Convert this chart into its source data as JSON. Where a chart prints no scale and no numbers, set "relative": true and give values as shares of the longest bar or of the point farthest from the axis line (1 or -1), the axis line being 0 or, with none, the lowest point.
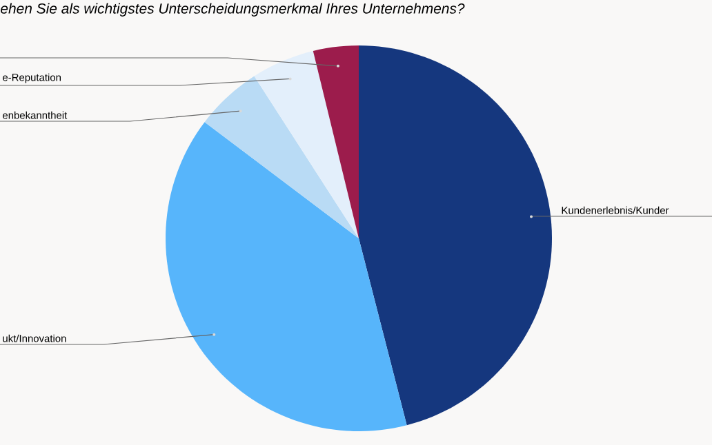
{
  "chart_data": {
    "type": "pie",
    "relative": true,
    "title": "*ehen Sie als wichtigstes Unterscheidungsmerkmal Ihres Unternehmens?*",
    "categories": [
      "Kundenerlebnis/Kunder",
      "ukt/Innovation",
      "enbekanntheit",
      "e-Reputation",
      null
    ],
    "values": [
      46.0,
      39.3,
      5.6,
      5.3,
      3.8
    ],
    "colors": [
      "#15377e",
      "#57b5fb",
      "#b9dbf5",
      "#e3effb",
      "#9c1c4c"
    ]
  }
}
